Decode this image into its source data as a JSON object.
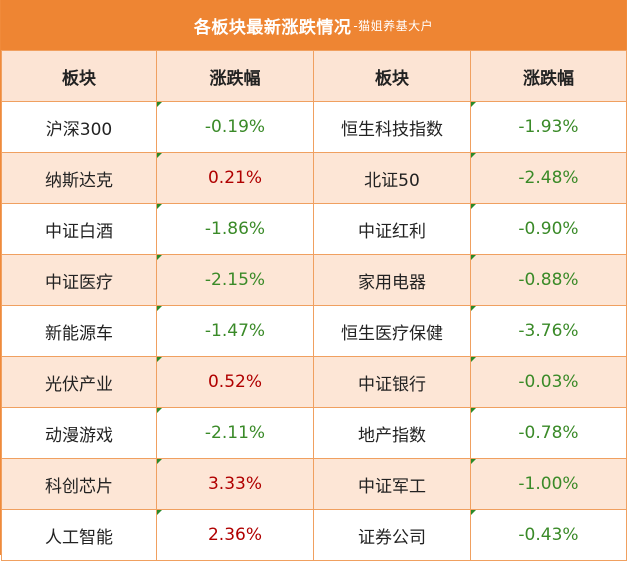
{
  "title": {
    "main": "各板块最新涨跌情况",
    "sub": "-猫姐养基大户"
  },
  "headers": [
    "板块",
    "涨跌幅",
    "板块",
    "涨跌幅"
  ],
  "rows": [
    {
      "left_name": "沪深300",
      "left_change": "-0.19%",
      "right_name": "恒生科技指数",
      "right_change": "-1.93%"
    },
    {
      "left_name": "纳斯达克",
      "left_change": "0.21%",
      "right_name": "北证50",
      "right_change": "-2.48%"
    },
    {
      "left_name": "中证白酒",
      "left_change": "-1.86%",
      "right_name": "中证红利",
      "right_change": "-0.90%"
    },
    {
      "left_name": "中证医疗",
      "left_change": "-2.15%",
      "right_name": "家用电器",
      "right_change": "-0.88%"
    },
    {
      "left_name": "新能源车",
      "left_change": "-1.47%",
      "right_name": "恒生医疗保健",
      "right_change": "-3.76%"
    },
    {
      "left_name": "光伏产业",
      "left_change": "0.52%",
      "right_name": "中证银行",
      "right_change": "-0.03%"
    },
    {
      "left_name": "动漫游戏",
      "left_change": "-2.11%",
      "right_name": "地产指数",
      "right_change": "-0.78%"
    },
    {
      "left_name": "科创芯片",
      "left_change": "3.33%",
      "right_name": "中证军工",
      "right_change": "-1.00%"
    },
    {
      "left_name": "人工智能",
      "left_change": "2.36%",
      "right_name": "证券公司",
      "right_change": "-0.43%"
    }
  ],
  "colors": {
    "header_bar": "#ee8533",
    "positive": "#b00000",
    "negative": "#3a8a28",
    "stripe": "#fde6d6"
  }
}
